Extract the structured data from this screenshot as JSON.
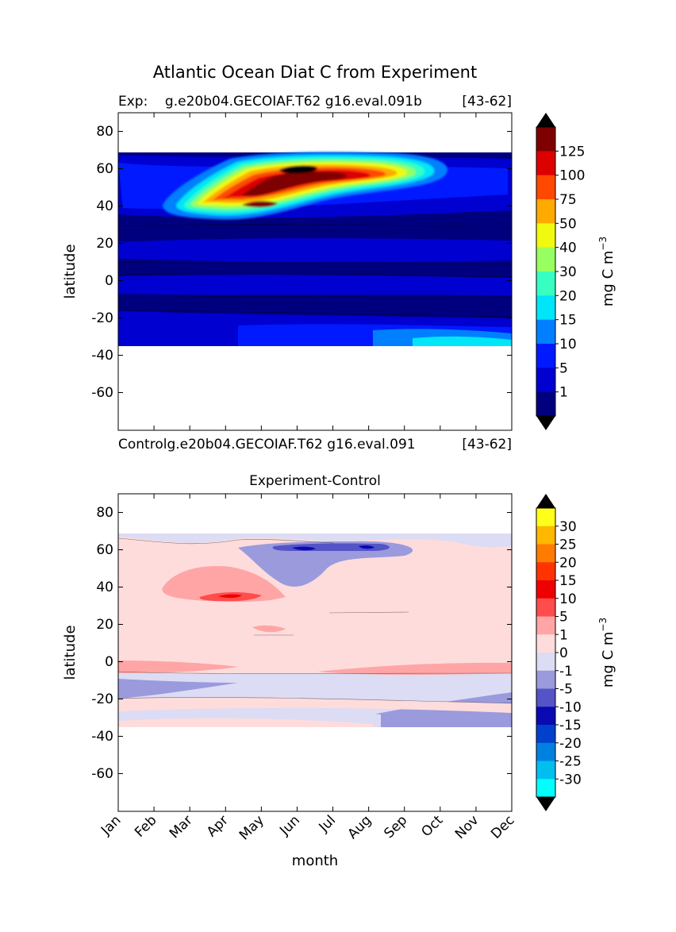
{
  "figure": {
    "suptitle": "Atlantic Ocean Diat C from Experiment"
  },
  "chart_data": [
    {
      "type": "heatmap",
      "panel": "top",
      "left_label": "Exp:    g.e20b04.GECOIAF.T62 g16.eval.091b",
      "right_label": "[43-62]",
      "xlabel": "",
      "ylabel": "latitude",
      "xlim": [
        0,
        11
      ],
      "ylim": [
        -80,
        90
      ],
      "yticks": [
        80,
        60,
        40,
        20,
        0,
        -20,
        -40,
        -60
      ],
      "data_lat_range": [
        -35,
        69
      ],
      "colorbar": {
        "label": "mg C m",
        "label_exponent": "−3",
        "ticks": [
          "125",
          "100",
          "75",
          "50",
          "40",
          "30",
          "20",
          "15",
          "10",
          "5",
          "1"
        ],
        "levels": [
          0,
          1,
          5,
          10,
          15,
          20,
          30,
          40,
          50,
          75,
          100,
          125
        ],
        "colors": [
          "#00007f",
          "#0000d0",
          "#0019ff",
          "#0080ff",
          "#00e5f7",
          "#36ffc1",
          "#98ff60",
          "#f0f90e",
          "#ffaa00",
          "#ff4800",
          "#dd0000",
          "#7f0000"
        ],
        "over_color": "#000000",
        "under_color": "#000000"
      },
      "grid": false
    },
    {
      "type": "heatmap",
      "panel": "bottom",
      "title": "Experiment-Control",
      "left_label": "Controlg.e20b04.GECOIAF.T62 g16.eval.091",
      "right_label": "[43-62]",
      "xlabel": "month",
      "ylabel": "latitude",
      "categories": [
        "Jan",
        "Feb",
        "Mar",
        "Apr",
        "May",
        "Jun",
        "Jul",
        "Aug",
        "Sep",
        "Oct",
        "Nov",
        "Dec"
      ],
      "ylim": [
        -80,
        90
      ],
      "yticks": [
        80,
        60,
        40,
        20,
        0,
        -20,
        -40,
        -60
      ],
      "data_lat_range": [
        -35,
        69
      ],
      "colorbar": {
        "label": "mg C m",
        "label_exponent": "−3",
        "ticks": [
          "30",
          "25",
          "20",
          "15",
          "10",
          "5",
          "1",
          "0",
          "-1",
          "-5",
          "-10",
          "-15",
          "-20",
          "-25",
          "-30"
        ],
        "colors": [
          "#ffff19",
          "#ffb700",
          "#ff7c00",
          "#ff3300",
          "#ee0000",
          "#ff4c4c",
          "#ffa5a5",
          "#ffdcdc",
          "#dcdcf4",
          "#9a9add",
          "#5454c6",
          "#0a0ab2",
          "#0040cc",
          "#0080e0",
          "#00bfee",
          "#00ffff"
        ],
        "over_color": "#000000",
        "under_color": "#000000"
      },
      "grid": false
    }
  ]
}
